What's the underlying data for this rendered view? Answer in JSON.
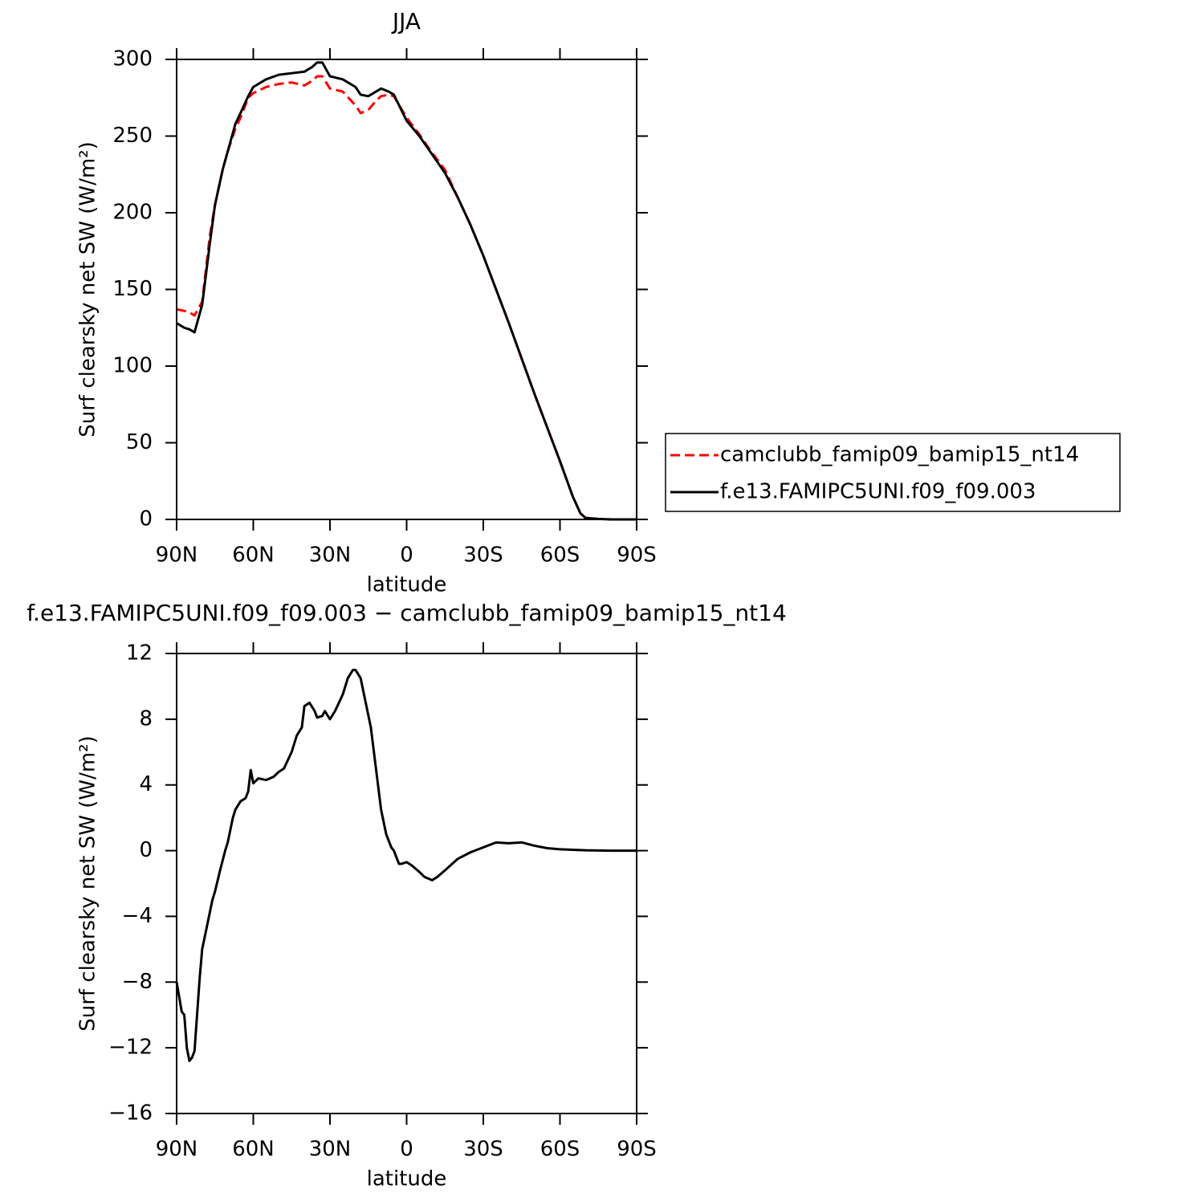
{
  "chart_data": [
    {
      "type": "line",
      "title": "JJA",
      "xlabel": "latitude",
      "ylabel": "Surf clearsky net SW (W/m²)",
      "xlim": [
        90,
        -90
      ],
      "ylim": [
        0,
        300
      ],
      "xticks": [
        {
          "value": 90,
          "label": "90N"
        },
        {
          "value": 60,
          "label": "60N"
        },
        {
          "value": 30,
          "label": "30N"
        },
        0,
        {
          "value": -30,
          "label": "30S"
        },
        {
          "value": -60,
          "label": "60S"
        },
        {
          "value": -90,
          "label": "90S"
        }
      ],
      "yticks": [
        0,
        50,
        100,
        150,
        200,
        250,
        300
      ],
      "legend_loc": "right",
      "x": [
        90,
        87,
        85,
        83,
        80,
        77,
        75,
        72,
        70,
        67,
        65,
        62,
        60,
        55,
        50,
        45,
        40,
        37,
        35,
        33,
        30,
        25,
        20,
        18,
        15,
        12,
        10,
        7,
        5,
        0,
        -5,
        -10,
        -15,
        -20,
        -25,
        -30,
        -35,
        -40,
        -45,
        -50,
        -55,
        -60,
        -65,
        -68,
        -70,
        -75,
        -80,
        -90
      ],
      "series": [
        {
          "name": "camclubb_famip09_bamip15_nt14",
          "color": "#ff0000",
          "linestyle": "dashed",
          "values": [
            137,
            136,
            135,
            133,
            142,
            185,
            205,
            228,
            240,
            255,
            262,
            275,
            278,
            282,
            284,
            285,
            283,
            286,
            289,
            289,
            281,
            279,
            270,
            265,
            267,
            273,
            276,
            277,
            276,
            262,
            251,
            239,
            228,
            210,
            192,
            172,
            150,
            128,
            105,
            82,
            60,
            38,
            15,
            4,
            1,
            0.3,
            0,
            0
          ]
        },
        {
          "name": "f.e13.FAMIPC5UNI.f09_f09.003",
          "color": "#000000",
          "linestyle": "solid",
          "values": [
            128,
            125,
            124,
            122,
            140,
            180,
            205,
            228,
            240,
            258,
            265,
            276,
            282,
            287,
            290,
            291,
            292,
            295,
            298,
            298,
            289,
            287,
            282,
            277,
            276,
            279,
            281,
            279,
            277,
            260,
            250,
            238,
            226,
            210,
            192,
            172,
            150,
            128,
            105,
            82,
            60,
            38,
            15,
            4,
            1,
            0.3,
            0,
            0
          ]
        }
      ]
    },
    {
      "type": "line",
      "title": "f.e13.FAMIPC5UNI.f09_f09.003 − camclubb_famip09_bamip15_nt14",
      "xlabel": "latitude",
      "ylabel": "Surf clearsky net SW (W/m²)",
      "xlim": [
        90,
        -90
      ],
      "ylim": [
        -16,
        12
      ],
      "xticks": [
        {
          "value": 90,
          "label": "90N"
        },
        {
          "value": 60,
          "label": "60N"
        },
        {
          "value": 30,
          "label": "30N"
        },
        0,
        {
          "value": -30,
          "label": "30S"
        },
        {
          "value": -60,
          "label": "60S"
        },
        {
          "value": -90,
          "label": "90S"
        }
      ],
      "yticks": [
        {
          "value": -16,
          "label": "−16"
        },
        {
          "value": -12,
          "label": "−12"
        },
        {
          "value": -8,
          "label": "−8"
        },
        {
          "value": -4,
          "label": "−4"
        },
        0,
        4,
        8,
        12
      ],
      "x": [
        90,
        88,
        87,
        86,
        85,
        84,
        83,
        82,
        81,
        80,
        78,
        76,
        75,
        73,
        71,
        70,
        68,
        67,
        65,
        63,
        62,
        61,
        60,
        58,
        55,
        52,
        50,
        48,
        45,
        43,
        41,
        40,
        38,
        36,
        35,
        33,
        32,
        30,
        28,
        25,
        23,
        21,
        20,
        18,
        16,
        14,
        12,
        10,
        8,
        6,
        5,
        3,
        2,
        0,
        -2,
        -5,
        -7,
        -10,
        -12,
        -15,
        -20,
        -25,
        -30,
        -35,
        -40,
        -45,
        -50,
        -55,
        -60,
        -70,
        -80,
        -90
      ],
      "color": "#000000",
      "values": [
        -8,
        -9.8,
        -10,
        -12,
        -12.8,
        -12.6,
        -12.2,
        -10,
        -7.8,
        -6,
        -4.5,
        -3,
        -2.5,
        -1.2,
        0,
        0.5,
        2,
        2.5,
        3,
        3.2,
        3.6,
        4.9,
        4.1,
        4.4,
        4.3,
        4.5,
        4.8,
        5,
        6,
        7,
        7.5,
        8.8,
        9,
        8.5,
        8.1,
        8.2,
        8.5,
        8,
        8.5,
        9.5,
        10.5,
        11,
        11,
        10.5,
        9,
        7.5,
        5,
        2.5,
        1,
        0.2,
        0,
        -0.8,
        -0.8,
        -0.7,
        -0.9,
        -1.3,
        -1.6,
        -1.8,
        -1.6,
        -1.2,
        -0.5,
        -0.1,
        0.2,
        0.5,
        0.45,
        0.5,
        0.3,
        0.15,
        0.08,
        0.02,
        0,
        0
      ]
    }
  ]
}
